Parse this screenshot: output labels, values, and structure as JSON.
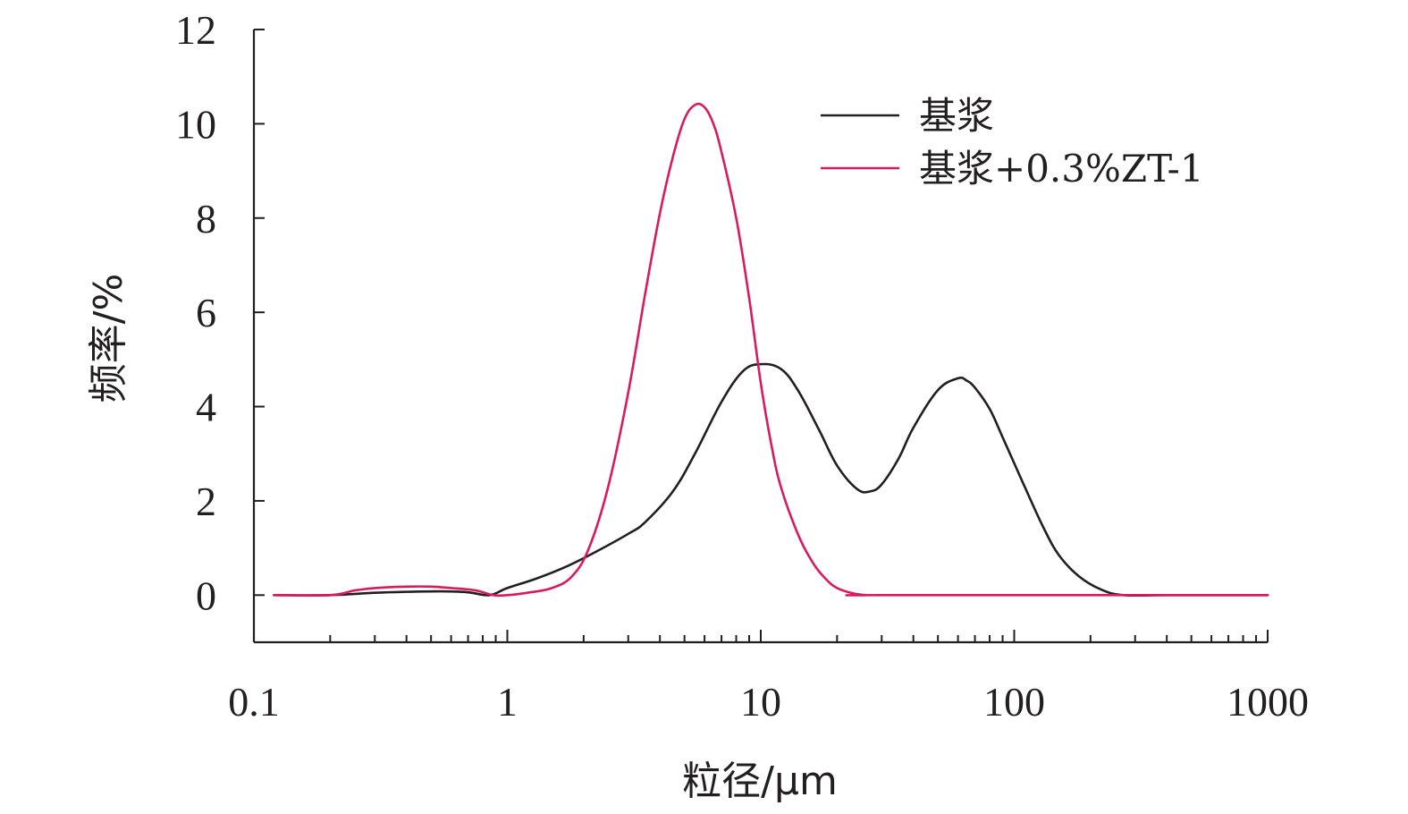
{
  "chart_data": {
    "type": "line",
    "xlabel": "粒径/μm",
    "ylabel": "频率/%",
    "x_scale": "log",
    "xlim": [
      0.1,
      1000
    ],
    "ylim": [
      -1,
      12
    ],
    "x_ticks": [
      0.1,
      1,
      10,
      100,
      1000
    ],
    "x_tick_labels": [
      "0.1",
      "1",
      "10",
      "100",
      "1000"
    ],
    "y_ticks": [
      0,
      2,
      4,
      6,
      8,
      10,
      12
    ],
    "y_tick_labels": [
      "0",
      "2",
      "4",
      "6",
      "8",
      "10",
      "12"
    ],
    "grid": false,
    "legend_position": "top-right",
    "series": [
      {
        "name": "基浆",
        "color": "#231f20",
        "x": [
          0.12,
          0.2,
          0.3,
          0.4,
          0.55,
          0.7,
          0.85,
          1.0,
          1.3,
          1.7,
          2.2,
          3.0,
          3.5,
          4.5,
          5.5,
          7.0,
          8.5,
          10.0,
          12.0,
          14.0,
          17.0,
          20.0,
          24.0,
          27.0,
          30.0,
          35.0,
          40.0,
          50.0,
          60.0,
          65.0,
          70.0,
          80.0,
          90.0,
          110.0,
          130.0,
          150.0,
          180.0,
          220.0,
          270.0,
          400.0,
          1000.0
        ],
        "y": [
          0,
          0,
          0.05,
          0.07,
          0.08,
          0.06,
          0.0,
          0.15,
          0.35,
          0.6,
          0.9,
          1.3,
          1.55,
          2.2,
          3.0,
          4.1,
          4.75,
          4.9,
          4.8,
          4.35,
          3.5,
          2.75,
          2.25,
          2.2,
          2.35,
          2.9,
          3.55,
          4.35,
          4.6,
          4.55,
          4.4,
          3.95,
          3.35,
          2.3,
          1.45,
          0.85,
          0.4,
          0.12,
          0.0,
          0.0,
          0.0
        ]
      },
      {
        "name": "基浆+0.3%ZT-1",
        "color": "#d81b60",
        "x": [
          0.12,
          0.2,
          0.25,
          0.3,
          0.4,
          0.5,
          0.6,
          0.75,
          0.88,
          1.0,
          1.2,
          1.5,
          1.8,
          2.1,
          2.5,
          3.0,
          3.5,
          4.0,
          4.5,
          5.0,
          5.5,
          6.0,
          6.5,
          7.0,
          8.0,
          9.0,
          10.0,
          11.0,
          12.0,
          14.0,
          16.0,
          18.0,
          20.0,
          23.0,
          26.0,
          30.0,
          1000.0
        ],
        "y": [
          0,
          0,
          0.1,
          0.15,
          0.18,
          0.18,
          0.15,
          0.1,
          0.0,
          0.0,
          0.05,
          0.15,
          0.4,
          1.0,
          2.3,
          4.3,
          6.4,
          8.1,
          9.3,
          10.1,
          10.4,
          10.35,
          10.0,
          9.4,
          8.0,
          6.3,
          4.5,
          3.2,
          2.3,
          1.3,
          0.7,
          0.35,
          0.15,
          0.04,
          0.0,
          0.0,
          0.0
        ]
      }
    ]
  }
}
